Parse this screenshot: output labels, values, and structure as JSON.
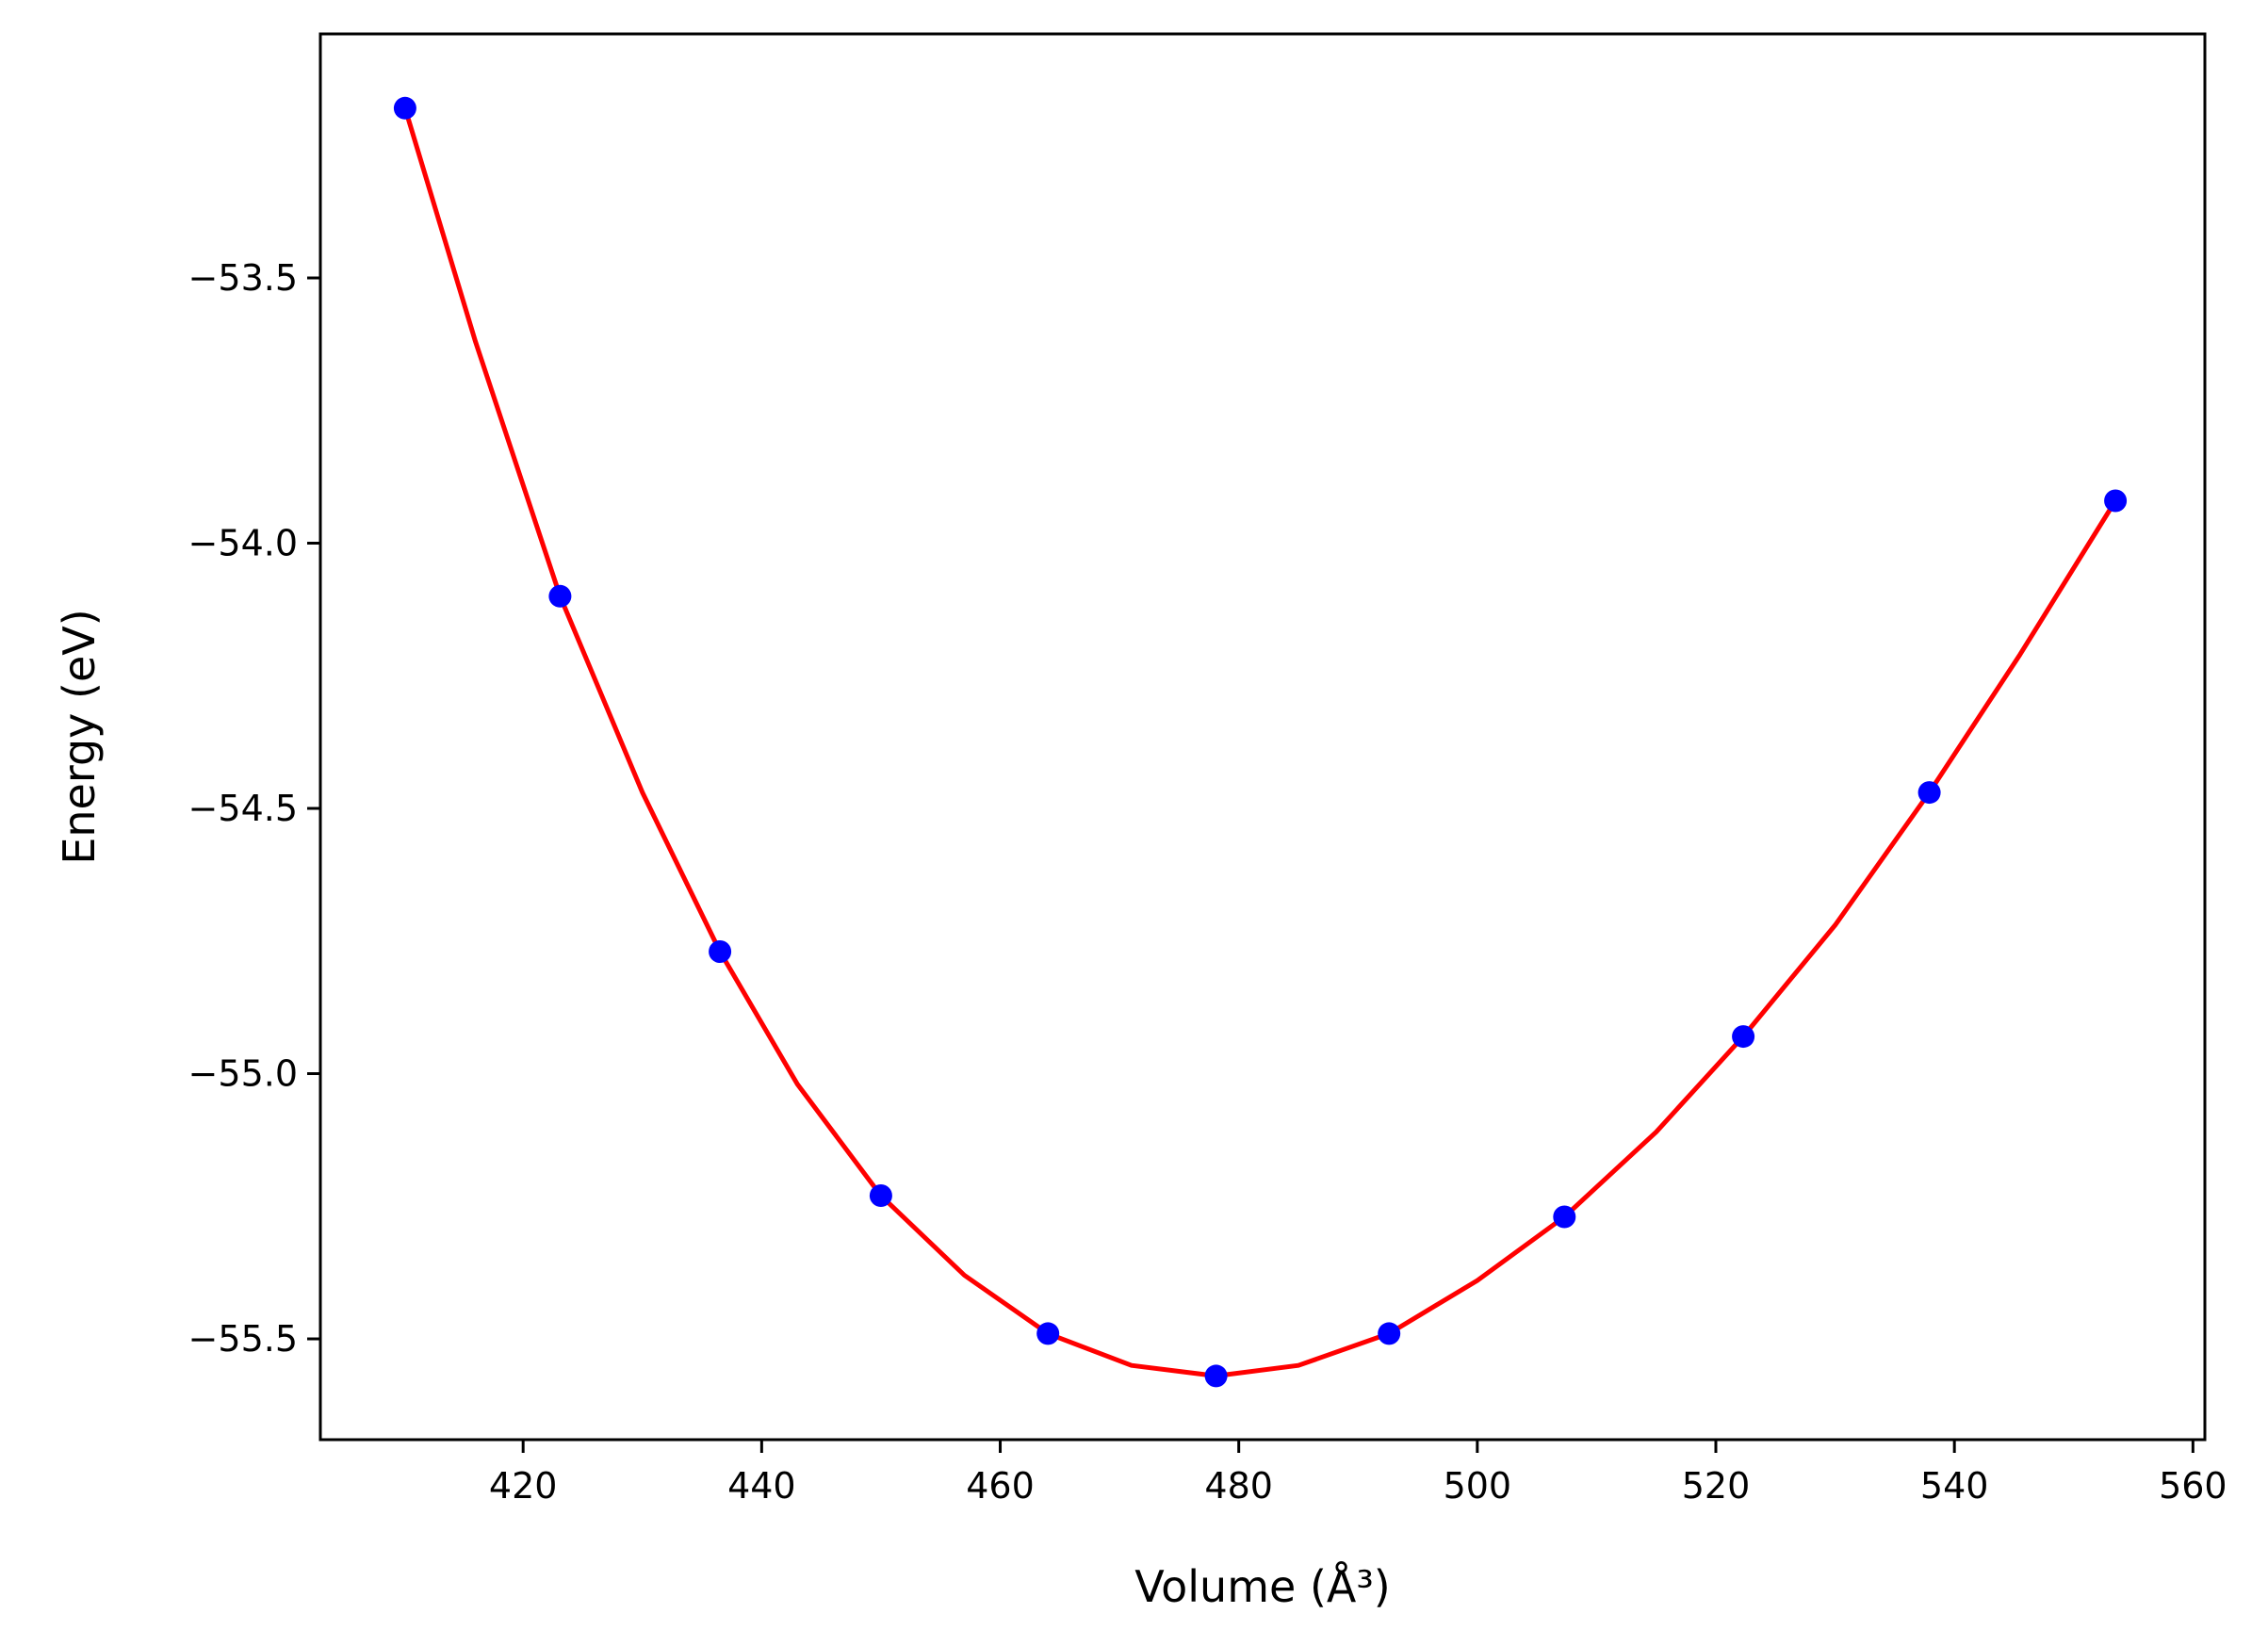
{
  "chart_data": {
    "type": "scatter",
    "xlabel": "Volume (Å³)",
    "ylabel": "Energy (eV)",
    "xlim": [
      403,
      561
    ],
    "ylim": [
      -55.69,
      -53.04
    ],
    "xticks": [
      420,
      440,
      460,
      480,
      500,
      520,
      540,
      560
    ],
    "yticks": [
      -53.5,
      -54.0,
      -54.5,
      -55.0,
      -55.5
    ],
    "xtick_labels": [
      "420",
      "440",
      "460",
      "480",
      "500",
      "520",
      "540",
      "560"
    ],
    "ytick_labels": [
      "−53.5",
      "−54.0",
      "−54.5",
      "−55.0",
      "−55.5"
    ],
    "grid": false,
    "points": {
      "color": "#0000ff",
      "x": [
        410.1,
        423.1,
        436.5,
        450.0,
        464.0,
        478.1,
        492.6,
        507.3,
        522.3,
        537.9,
        553.5
      ],
      "y": [
        -53.18,
        -54.1,
        -54.77,
        -55.23,
        -55.49,
        -55.57,
        -55.49,
        -55.27,
        -54.93,
        -54.47,
        -53.92
      ]
    },
    "fit_curve": {
      "color": "#ff0000",
      "x": [
        410.1,
        416.0,
        423.1,
        430.0,
        436.5,
        443.0,
        450.0,
        457.0,
        464.0,
        471.0,
        478.1,
        485.0,
        492.6,
        500.0,
        507.3,
        515.0,
        522.3,
        530.0,
        537.9,
        545.5,
        553.5
      ],
      "y": [
        -53.18,
        -53.62,
        -54.1,
        -54.47,
        -54.77,
        -55.02,
        -55.23,
        -55.38,
        -55.49,
        -55.55,
        -55.57,
        -55.55,
        -55.49,
        -55.39,
        -55.27,
        -55.11,
        -54.93,
        -54.72,
        -54.47,
        -54.21,
        -53.92
      ]
    }
  }
}
